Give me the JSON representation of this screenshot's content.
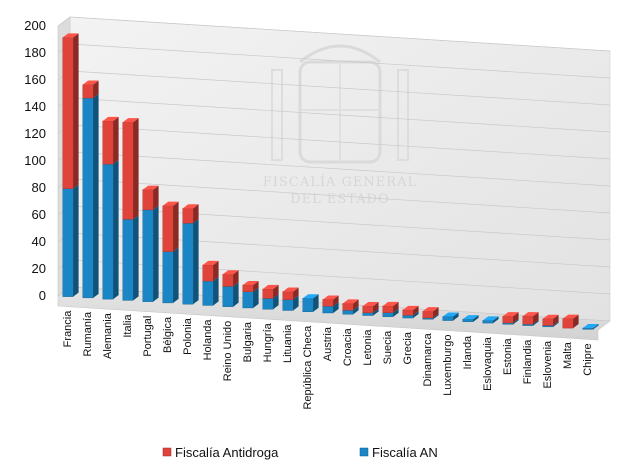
{
  "chart_data": {
    "type": "bar",
    "stacked": true,
    "style": "3d-column",
    "categories": [
      "Francia",
      "Rumanía",
      "Alemania",
      "Italia",
      "Portugal",
      "Bélgica",
      "Polonia",
      "Holanda",
      "Reino Unido",
      "Bulgaria",
      "Hungría",
      "Lituania",
      "República Checa",
      "Austria",
      "Croacia",
      "Letonia",
      "Suecia",
      "Grecia",
      "Dinamarca",
      "Luxemburgo",
      "Irlanda",
      "Eslovaquia",
      "Estonia",
      "Finlandia",
      "Eslovenia",
      "Malta",
      "Chipre"
    ],
    "series": [
      {
        "name": "Fiscalía AN",
        "color": "#1a86c5",
        "values": [
          80,
          148,
          100,
          60,
          68,
          38,
          60,
          18,
          15,
          12,
          8,
          8,
          10,
          5,
          3,
          2,
          3,
          2,
          1,
          3,
          2,
          2,
          1,
          1,
          1,
          0,
          1
        ]
      },
      {
        "name": "Fiscalía Antidroga",
        "color": "#e0433a",
        "values": [
          112,
          10,
          32,
          72,
          15,
          34,
          11,
          12,
          9,
          5,
          7,
          6,
          0,
          5,
          5,
          5,
          5,
          4,
          5,
          0,
          0,
          0,
          5,
          6,
          5,
          7,
          0
        ]
      }
    ],
    "ylim": [
      0,
      200
    ],
    "yticks": [
      0,
      20,
      40,
      60,
      80,
      100,
      120,
      140,
      160,
      180,
      200
    ],
    "title": "",
    "xlabel": "",
    "ylabel": "",
    "grid": true,
    "legend": "bottom"
  },
  "watermark": {
    "line1": "FISCALÍA GENERAL",
    "line2": "DEL ESTADO"
  }
}
